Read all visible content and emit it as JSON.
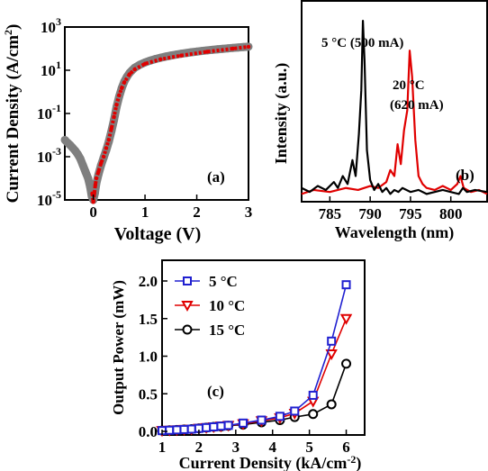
{
  "chart_data": [
    {
      "panel": "(a)",
      "type": "scatter",
      "xlabel": "Voltage (V)",
      "ylabel_main": "Current Density (A/cm",
      "ylabel_sup": "2",
      "ylabel_close": ")",
      "xlim": [
        -0.55,
        3.0
      ],
      "ylim_log10": [
        -5,
        3
      ],
      "yscale": "log",
      "xticks": [
        "0",
        "1",
        "2",
        "3"
      ],
      "yticks": [
        {
          "base": "10",
          "exp": "3"
        },
        {
          "base": "10",
          "exp": "1"
        },
        {
          "base": "10",
          "exp": "-1"
        },
        {
          "base": "10",
          "exp": "-3"
        },
        {
          "base": "10",
          "exp": "-5"
        }
      ],
      "ytick_exponents": [
        3,
        1,
        -1,
        -3,
        -5
      ],
      "series": [
        {
          "color": "#7f7f7f",
          "role": "measured",
          "x": [
            -0.55,
            -0.5,
            -0.45,
            -0.4,
            -0.35,
            -0.3,
            -0.25,
            -0.2,
            -0.15,
            -0.1,
            -0.06,
            -0.03,
            0.0,
            0.03,
            0.06,
            0.1,
            0.15,
            0.2,
            0.25,
            0.3,
            0.35,
            0.4,
            0.45,
            0.5,
            0.55,
            0.6,
            0.65,
            0.7,
            0.75,
            0.8,
            0.9,
            1.0,
            1.1,
            1.2,
            1.3,
            1.4,
            1.5,
            1.6,
            1.7,
            1.8,
            1.9,
            2.0,
            2.1,
            2.2,
            2.3,
            2.4,
            2.5,
            2.6,
            2.7,
            2.8,
            2.9,
            3.0
          ],
          "y": [
            0.006,
            0.0045,
            0.0035,
            0.0026,
            0.0019,
            0.0013,
            0.0008,
            0.0004,
            0.0002,
            0.0001,
            4e-05,
            1.5e-05,
            1e-05,
            2e-05,
            6e-05,
            0.00015,
            0.0004,
            0.0009,
            0.002,
            0.005,
            0.015,
            0.05,
            0.2,
            0.6,
            1.5,
            3,
            5,
            7.5,
            10,
            13,
            18,
            23,
            28,
            33,
            38,
            43,
            48,
            53,
            58,
            63,
            68,
            73,
            78,
            83,
            88,
            93,
            98,
            103,
            108,
            113,
            118,
            123
          ]
        },
        {
          "color": "#e00000",
          "role": "fit",
          "x": [
            -0.02,
            0.0,
            0.02,
            0.04,
            0.06,
            0.1,
            0.15,
            0.2,
            0.25,
            0.3,
            0.35,
            0.4,
            0.45,
            0.5,
            0.55,
            0.6,
            0.7,
            0.8,
            1.0,
            1.3,
            1.7,
            2.2,
            2.7,
            3.0
          ],
          "y": [
            2e-05,
            8e-06,
            2e-05,
            5e-05,
            0.0001,
            0.0002,
            0.0005,
            0.001,
            0.0025,
            0.006,
            0.02,
            0.07,
            0.25,
            0.7,
            1.5,
            2.8,
            6.5,
            11,
            20,
            32,
            48,
            72,
            100,
            122
          ]
        }
      ]
    },
    {
      "panel": "(b)",
      "type": "line",
      "xlabel": "Wavelength (nm)",
      "ylabel": "Intensity (a.u.)",
      "xlim": [
        781.5,
        804.5
      ],
      "ylim": [
        0,
        1.0
      ],
      "xticks": [
        785,
        790,
        795,
        800
      ],
      "annotations": [
        {
          "text": "5 °C (500 mA)"
        },
        {
          "text_line1": "20 °C",
          "text_line2": "(620 mA)"
        }
      ],
      "series": [
        {
          "name": "5 °C (500 mA)",
          "color": "#000000",
          "x": [
            781.5,
            782.5,
            783.5,
            784.5,
            785.5,
            786.0,
            786.6,
            787.2,
            787.8,
            788.2,
            788.6,
            788.9,
            789.1,
            789.3,
            789.6,
            790.0,
            790.5,
            791.0,
            791.5,
            792.0,
            792.5,
            793.0,
            793.5,
            794.0,
            795.0,
            796.0,
            797.0,
            798.0,
            799.0,
            800.0,
            801.0,
            801.5,
            802.0,
            803.0,
            804.5
          ],
          "y": [
            0.06,
            0.04,
            0.07,
            0.05,
            0.09,
            0.06,
            0.12,
            0.08,
            0.2,
            0.12,
            0.33,
            0.55,
            0.9,
            0.7,
            0.25,
            0.1,
            0.05,
            0.08,
            0.04,
            0.06,
            0.03,
            0.05,
            0.04,
            0.06,
            0.04,
            0.05,
            0.03,
            0.04,
            0.05,
            0.04,
            0.03,
            0.06,
            0.04,
            0.05,
            0.04
          ]
        },
        {
          "name": "20 °C (620 mA)",
          "color": "#e00000",
          "x": [
            781.5,
            783.0,
            785.0,
            787.0,
            788.5,
            790.0,
            791.0,
            792.0,
            792.5,
            793.0,
            793.4,
            793.8,
            794.2,
            794.6,
            794.9,
            795.2,
            795.6,
            796.0,
            796.5,
            797.0,
            798.0,
            799.0,
            800.0,
            800.8,
            801.2,
            801.6,
            802.5,
            803.5,
            804.5
          ],
          "y": [
            0.03,
            0.05,
            0.04,
            0.06,
            0.05,
            0.07,
            0.06,
            0.09,
            0.15,
            0.12,
            0.28,
            0.18,
            0.35,
            0.45,
            0.75,
            0.62,
            0.3,
            0.12,
            0.08,
            0.06,
            0.05,
            0.07,
            0.05,
            0.08,
            0.12,
            0.06,
            0.04,
            0.05,
            0.03
          ]
        }
      ]
    },
    {
      "panel": "(c)",
      "type": "line",
      "xlabel_main": "Current Density (kA/cm",
      "xlabel_sup": "-2",
      "xlabel_close": ")",
      "ylabel": "Output Power (mW)",
      "xlim": [
        1,
        6.5
      ],
      "ylim": [
        0,
        2.0
      ],
      "xticks": [
        "1",
        "2",
        "3",
        "4",
        "5",
        "6"
      ],
      "yticks": [
        "0.0",
        "0.5",
        "1.0",
        "1.5",
        "2.0"
      ],
      "legend_placement": "top-left",
      "series": [
        {
          "name": "5 °C",
          "color": "#2020d0",
          "marker": "square",
          "x": [
            1.0,
            1.2,
            1.4,
            1.6,
            1.8,
            2.0,
            2.2,
            2.4,
            2.6,
            2.8,
            3.2,
            3.7,
            4.2,
            4.6,
            5.1,
            5.6,
            6.0
          ],
          "y": [
            0.01,
            0.015,
            0.02,
            0.025,
            0.03,
            0.04,
            0.05,
            0.06,
            0.07,
            0.08,
            0.11,
            0.15,
            0.2,
            0.27,
            0.48,
            1.2,
            1.95
          ]
        },
        {
          "name": "10 °C",
          "color": "#e00000",
          "marker": "triangle-down",
          "x": [
            1.0,
            1.2,
            1.4,
            1.6,
            1.8,
            2.0,
            2.2,
            2.4,
            2.6,
            2.8,
            3.2,
            3.7,
            4.2,
            4.6,
            5.1,
            5.6,
            6.0
          ],
          "y": [
            0.01,
            0.015,
            0.02,
            0.025,
            0.03,
            0.04,
            0.05,
            0.06,
            0.07,
            0.08,
            0.1,
            0.14,
            0.18,
            0.24,
            0.4,
            1.03,
            1.5
          ]
        },
        {
          "name": "15 °C",
          "color": "#000000",
          "marker": "circle",
          "x": [
            1.0,
            1.2,
            1.4,
            1.6,
            1.8,
            2.0,
            2.2,
            2.4,
            2.6,
            2.8,
            3.2,
            3.7,
            4.2,
            4.6,
            5.1,
            5.6,
            6.0
          ],
          "y": [
            0.01,
            0.015,
            0.02,
            0.025,
            0.03,
            0.04,
            0.05,
            0.06,
            0.065,
            0.075,
            0.09,
            0.12,
            0.15,
            0.19,
            0.23,
            0.36,
            0.9
          ]
        }
      ]
    }
  ]
}
